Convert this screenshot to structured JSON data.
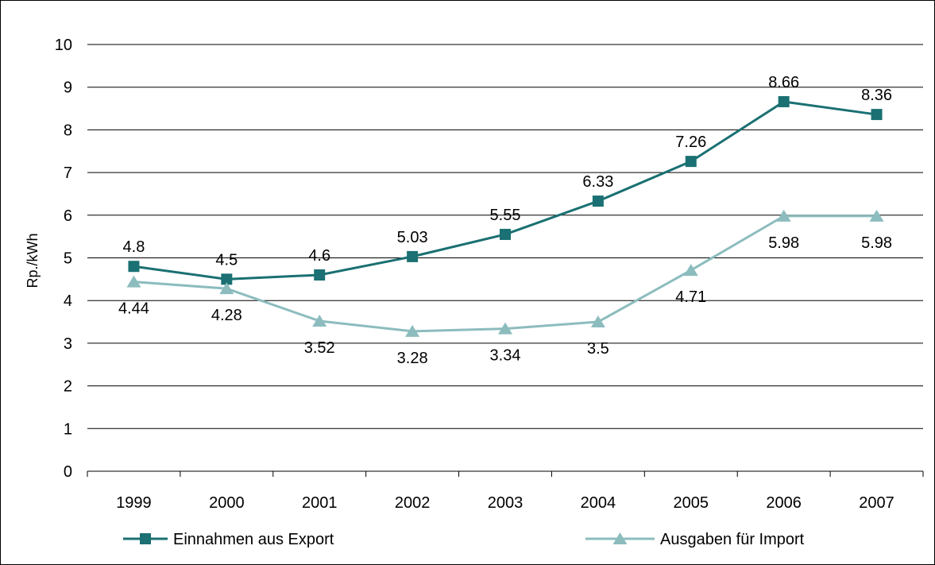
{
  "chart_data": {
    "type": "line",
    "title": "",
    "xlabel": "",
    "ylabel": "Rp./kWh",
    "ylim": [
      0,
      10
    ],
    "yticks": [
      "0",
      "1",
      "2",
      "3",
      "4",
      "5",
      "6",
      "7",
      "8",
      "9",
      "10"
    ],
    "grid": true,
    "legend_position": "bottom",
    "categories": [
      "1999",
      "2000",
      "2001",
      "2002",
      "2003",
      "2004",
      "2005",
      "2006",
      "2007"
    ],
    "series": [
      {
        "name": "Einnahmen aus Export",
        "values": [
          4.8,
          4.5,
          4.6,
          5.03,
          5.55,
          6.33,
          7.26,
          8.66,
          8.36
        ],
        "labels": [
          "4.8",
          "4.5",
          "4.6",
          "5.03",
          "5.55",
          "6.33",
          "7.26",
          "8.66",
          "8.36"
        ],
        "marker": "square",
        "label_placement": "above",
        "color": "#1a7072"
      },
      {
        "name": "Ausgaben für Import",
        "values": [
          4.44,
          4.28,
          3.52,
          3.28,
          3.34,
          3.5,
          4.71,
          5.98,
          5.98
        ],
        "labels": [
          "4.44",
          "4.28",
          "3.52",
          "3.28",
          "3.34",
          "3.5",
          "4.71",
          "5.98",
          "5.98"
        ],
        "marker": "triangle",
        "label_placement": "below",
        "color": "#8cbcbe"
      }
    ]
  }
}
